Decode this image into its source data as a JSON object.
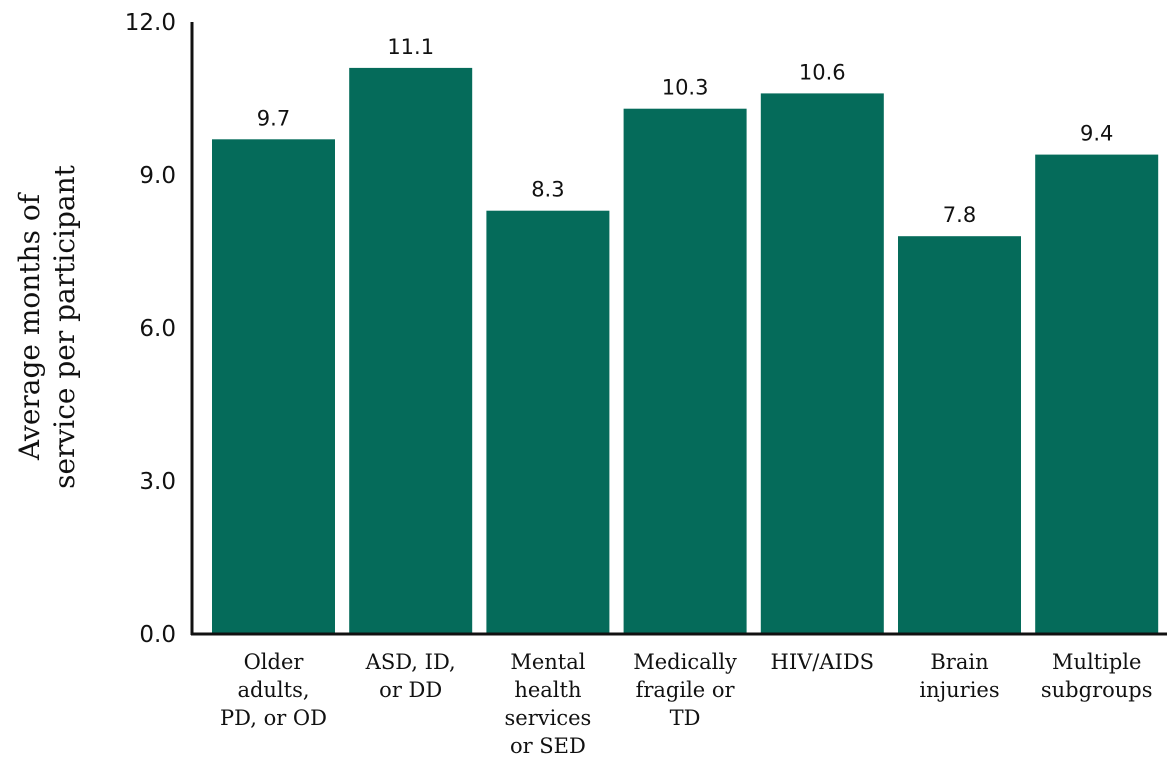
{
  "chart_data": {
    "type": "bar",
    "title": "",
    "xlabel": "",
    "ylabel": [
      "Average months of",
      "service per participant"
    ],
    "ylim": [
      0,
      12
    ],
    "yticks": [
      "0.0",
      "3.0",
      "6.0",
      "9.0",
      "12.0"
    ],
    "grid": false,
    "categories": [
      [
        "Older",
        "adults,",
        "PD, or OD"
      ],
      [
        "ASD, ID,",
        "or DD"
      ],
      [
        "Mental",
        "health",
        "services",
        "or SED"
      ],
      [
        "Medically",
        "fragile or",
        "TD"
      ],
      [
        "HIV/AIDS"
      ],
      [
        "Brain",
        "injuries"
      ],
      [
        "Multiple",
        "subgroups"
      ]
    ],
    "values": [
      9.7,
      11.1,
      8.3,
      10.3,
      10.6,
      7.8,
      9.4
    ],
    "value_labels": [
      "9.7",
      "11.1",
      "8.3",
      "10.3",
      "10.6",
      "7.8",
      "9.4"
    ],
    "bar_color": "#056b5a",
    "axis_color": "#111111"
  }
}
